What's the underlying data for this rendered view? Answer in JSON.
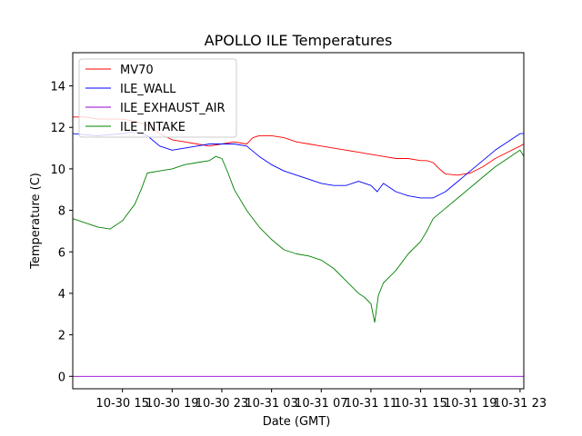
{
  "chart_data": {
    "type": "line",
    "title": "APOLLO ILE Temperatures",
    "xlabel": "Date (GMT)",
    "ylabel": "Temperature (C)",
    "x_unit": "hours since 10-30 11:00 GMT",
    "xlim": [
      0,
      36.3
    ],
    "ylim": [
      -0.6,
      15.6
    ],
    "yticks": [
      0,
      2,
      4,
      6,
      8,
      10,
      12,
      14
    ],
    "xticks": [
      {
        "value": 4,
        "label": "10-30 15"
      },
      {
        "value": 8,
        "label": "10-30 19"
      },
      {
        "value": 12,
        "label": "10-30 23"
      },
      {
        "value": 16,
        "label": "10-31 03"
      },
      {
        "value": 20,
        "label": "10-31 07"
      },
      {
        "value": 24,
        "label": "10-31 11"
      },
      {
        "value": 28,
        "label": "10-31 15"
      },
      {
        "value": 32,
        "label": "10-31 19"
      },
      {
        "value": 36,
        "label": "10-31 23"
      }
    ],
    "legend_position": "top-left",
    "series": [
      {
        "name": "MV70",
        "color": "#ff0000",
        "x": [
          0,
          1,
          2,
          4,
          5,
          6,
          7,
          8,
          9,
          10,
          11,
          12,
          13,
          14,
          14.5,
          15,
          16,
          17,
          18,
          19,
          20,
          21,
          22,
          23,
          24,
          25,
          26,
          27,
          28,
          28.5,
          29,
          29.5,
          30,
          31,
          32,
          33,
          34,
          35,
          36,
          36.3
        ],
        "y": [
          12.5,
          12.5,
          12.4,
          12.4,
          12.3,
          12.1,
          11.7,
          11.4,
          11.3,
          11.2,
          11.1,
          11.2,
          11.3,
          11.2,
          11.5,
          11.6,
          11.6,
          11.5,
          11.3,
          11.2,
          11.1,
          11.0,
          10.9,
          10.8,
          10.7,
          10.6,
          10.5,
          10.5,
          10.4,
          10.4,
          10.3,
          10.0,
          9.75,
          9.7,
          9.8,
          10.1,
          10.5,
          10.8,
          11.1,
          11.2
        ]
      },
      {
        "name": "ILE_WALL",
        "color": "#0000ff",
        "x": [
          0,
          2,
          4,
          5,
          6,
          7,
          8,
          9,
          10,
          11,
          12,
          13,
          14,
          15,
          16,
          17,
          18,
          19,
          20,
          21,
          22,
          23,
          24,
          24.5,
          25,
          26,
          27,
          28,
          29,
          30,
          31,
          32,
          33,
          34,
          35,
          36,
          36.3
        ],
        "y": [
          11.7,
          11.6,
          11.7,
          11.8,
          11.6,
          11.1,
          10.9,
          11.0,
          11.1,
          11.2,
          11.2,
          11.2,
          11.1,
          10.6,
          10.2,
          9.9,
          9.7,
          9.5,
          9.3,
          9.2,
          9.2,
          9.4,
          9.2,
          8.9,
          9.3,
          8.9,
          8.7,
          8.6,
          8.6,
          8.9,
          9.4,
          9.9,
          10.4,
          10.9,
          11.3,
          11.7,
          11.7
        ]
      },
      {
        "name": "ILE_EXHAUST_AIR",
        "color": "#9400d3",
        "x": [
          0,
          36.3
        ],
        "y": [
          0.0,
          0.0
        ]
      },
      {
        "name": "ILE_INTAKE",
        "color": "#008000",
        "x": [
          0,
          1,
          2,
          3,
          4,
          5,
          5.5,
          6,
          7,
          8,
          9,
          10,
          11,
          11.5,
          12,
          12.5,
          13,
          14,
          15,
          16,
          17,
          18,
          19,
          20,
          21,
          22,
          23,
          23.5,
          24,
          24.3,
          24.6,
          25,
          25.5,
          26,
          27,
          28,
          28.5,
          29,
          30,
          31,
          32,
          33,
          34,
          35,
          36,
          36.3
        ],
        "y": [
          7.6,
          7.4,
          7.2,
          7.1,
          7.5,
          8.3,
          9.0,
          9.8,
          9.9,
          10.0,
          10.2,
          10.3,
          10.4,
          10.6,
          10.5,
          9.8,
          9.0,
          8.0,
          7.2,
          6.6,
          6.1,
          5.9,
          5.8,
          5.6,
          5.2,
          4.6,
          4.0,
          3.8,
          3.5,
          2.6,
          3.9,
          4.5,
          4.8,
          5.1,
          5.9,
          6.5,
          7.0,
          7.6,
          8.1,
          8.6,
          9.1,
          9.6,
          10.1,
          10.5,
          10.9,
          10.6
        ]
      }
    ]
  }
}
